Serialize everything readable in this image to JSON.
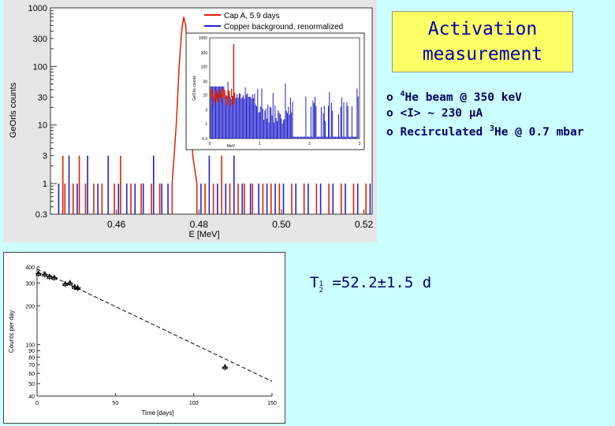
{
  "title": {
    "line1": "Activation",
    "line2": "measurement"
  },
  "bullets": [
    {
      "marker": "o",
      "sup": "4",
      "text": "He beam @ 350 keV"
    },
    {
      "marker": "o",
      "sup": "",
      "text": "<I> ~ 230 µA"
    },
    {
      "marker": "o",
      "sup": "",
      "pre": "Recirculated ",
      "sup2": "3",
      "text": "He @ 0.7 mbar"
    }
  ],
  "half_life": {
    "symbol": "T",
    "frac_num": "1",
    "frac_den": "2",
    "value": " =52.2±1.5 d"
  },
  "colors": {
    "red": "#dd2200",
    "blue": "#2222cc",
    "title_bg": "#ffff66",
    "text": "#000066",
    "background": "#ccffff"
  },
  "chart_data": [
    {
      "type": "line",
      "title": "",
      "xlabel": "E [MeV]",
      "ylabel": "GeOrls counts",
      "log_y": true,
      "xlim": [
        0.444,
        0.522
      ],
      "ylim": [
        0.3,
        1000
      ],
      "xticks": [
        "0.46",
        "0.48",
        "0.50",
        "0.52"
      ],
      "yticks": [
        "1000",
        "300",
        "100",
        "30",
        "10",
        "3",
        "1",
        "0.3"
      ],
      "legend": "top-right",
      "series": [
        {
          "name": "Cap A, 5.9 days",
          "color": "#dd2200",
          "peak": {
            "x": [
              0.4735,
              0.4745,
              0.4752,
              0.4758,
              0.4763,
              0.4768,
              0.4773,
              0.4778,
              0.4785,
              0.4795
            ],
            "y": [
              1,
              10,
              100,
              400,
              700,
              500,
              150,
              20,
              3,
              1
            ]
          },
          "lines_x": [
            0.447,
            0.4475,
            0.4495,
            0.451,
            0.4525,
            0.4545,
            0.4565,
            0.4595,
            0.461,
            0.4635,
            0.466,
            0.4685,
            0.4705,
            0.4815,
            0.4835,
            0.4855,
            0.4875,
            0.4895,
            0.491,
            0.493,
            0.4955,
            0.4975,
            0.4995,
            0.5025,
            0.5055,
            0.5085,
            0.5115,
            0.5145,
            0.5175,
            0.5205
          ],
          "lines_y": [
            3,
            1,
            1,
            3,
            1,
            1,
            1,
            1,
            3,
            1,
            1,
            1,
            1,
            1,
            1,
            3,
            1,
            1,
            1,
            1,
            1,
            1,
            1,
            1,
            1,
            1,
            1,
            1,
            1,
            1
          ]
        },
        {
          "name": "Copper background, renormalized",
          "color": "#2222cc",
          "lines_x": [
            0.446,
            0.4485,
            0.4505,
            0.453,
            0.4555,
            0.458,
            0.4605,
            0.4625,
            0.4645,
            0.4665,
            0.469,
            0.471,
            0.4725,
            0.4805,
            0.4825,
            0.4845,
            0.4865,
            0.4885,
            0.4905,
            0.4925,
            0.4945,
            0.4965,
            0.4985,
            0.5005,
            0.5035,
            0.5065,
            0.5095,
            0.5125,
            0.5155,
            0.5185,
            0.5215
          ],
          "lines_y": [
            1,
            3,
            1,
            3,
            1,
            3,
            1,
            1,
            1,
            1,
            3,
            1,
            1,
            1,
            3,
            1,
            1,
            3,
            1,
            1,
            1,
            1,
            1,
            1,
            1,
            1,
            1,
            1,
            1,
            1,
            1
          ]
        }
      ]
    },
    {
      "type": "line",
      "title": "",
      "xlabel": "MeV",
      "ylabel": "GeOrls counts",
      "log_y": true,
      "xlim": [
        0,
        3
      ],
      "ylim": [
        0.3,
        1000
      ],
      "xticks": [
        "0",
        "1",
        "2",
        "3"
      ],
      "yticks": [
        "1000",
        "300",
        "100",
        "30",
        "10",
        "3",
        "1",
        "0.3"
      ],
      "series": [
        {
          "name": "Cap A, 5.9 days",
          "color": "#dd2200",
          "peak_x": 0.48,
          "peak_y": 600
        },
        {
          "name": "Copper background, renormalized",
          "color": "#2222cc"
        }
      ]
    },
    {
      "type": "scatter",
      "title": "",
      "xlabel": "Time [days]",
      "ylabel": "Counts per day",
      "log_y": true,
      "xlim": [
        0,
        150
      ],
      "ylim": [
        40,
        400
      ],
      "xticks": [
        "0",
        "50",
        "100",
        "150"
      ],
      "yticks": [
        "400",
        "300",
        "200",
        "100",
        "90",
        "80",
        "70",
        "60",
        "50",
        "40"
      ],
      "points": {
        "x": [
          1,
          5,
          8,
          11,
          18,
          21,
          24,
          26,
          120
        ],
        "y": [
          355,
          350,
          335,
          330,
          295,
          300,
          280,
          275,
          67
        ]
      },
      "fit": {
        "x": [
          0,
          150
        ],
        "y": [
          385,
          52
        ]
      }
    }
  ]
}
